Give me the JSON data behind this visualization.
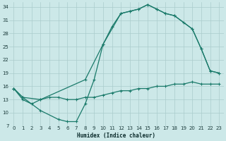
{
  "xlabel": "Humidex (Indice chaleur)",
  "bg_color": "#cce8e8",
  "grid_color": "#aacccc",
  "line_color": "#1a7a6a",
  "xlim": [
    -0.5,
    23.5
  ],
  "ylim": [
    7,
    35
  ],
  "xticks": [
    0,
    1,
    2,
    3,
    4,
    5,
    6,
    7,
    8,
    9,
    10,
    11,
    12,
    13,
    14,
    15,
    16,
    17,
    18,
    19,
    20,
    21,
    22,
    23
  ],
  "yticks": [
    7,
    10,
    13,
    16,
    19,
    22,
    25,
    28,
    31,
    34
  ],
  "series": [
    {
      "x": [
        0,
        1,
        3,
        5,
        6,
        7,
        8,
        9,
        10,
        11,
        12,
        13,
        14,
        15,
        16,
        17,
        18,
        20,
        21,
        22,
        23
      ],
      "y": [
        15.5,
        13.5,
        10.5,
        8.5,
        8.0,
        8.0,
        12.0,
        17.5,
        25.5,
        29.5,
        32.5,
        33.0,
        33.5,
        34.5,
        33.5,
        32.5,
        32.0,
        29.0,
        24.5,
        19.5,
        19.0
      ]
    },
    {
      "x": [
        0,
        1,
        3,
        8,
        10,
        12,
        13,
        14,
        15,
        16,
        17,
        18,
        19,
        20,
        21,
        22,
        23
      ],
      "y": [
        15.5,
        13.5,
        13.0,
        17.5,
        25.5,
        32.5,
        33.0,
        33.5,
        34.5,
        33.5,
        32.5,
        32.0,
        30.5,
        29.0,
        24.5,
        19.5,
        19.0
      ]
    },
    {
      "x": [
        0,
        1,
        2,
        3,
        4,
        5,
        6,
        7,
        8,
        9,
        10,
        11,
        12,
        13,
        14,
        15,
        16,
        17,
        18,
        19,
        20,
        21,
        22,
        23
      ],
      "y": [
        15.5,
        13.0,
        12.0,
        13.0,
        13.5,
        13.5,
        13.0,
        13.0,
        13.5,
        13.5,
        14.0,
        14.5,
        15.0,
        15.0,
        15.5,
        15.5,
        16.0,
        16.0,
        16.5,
        16.5,
        17.0,
        16.5,
        16.5,
        16.5
      ]
    }
  ]
}
